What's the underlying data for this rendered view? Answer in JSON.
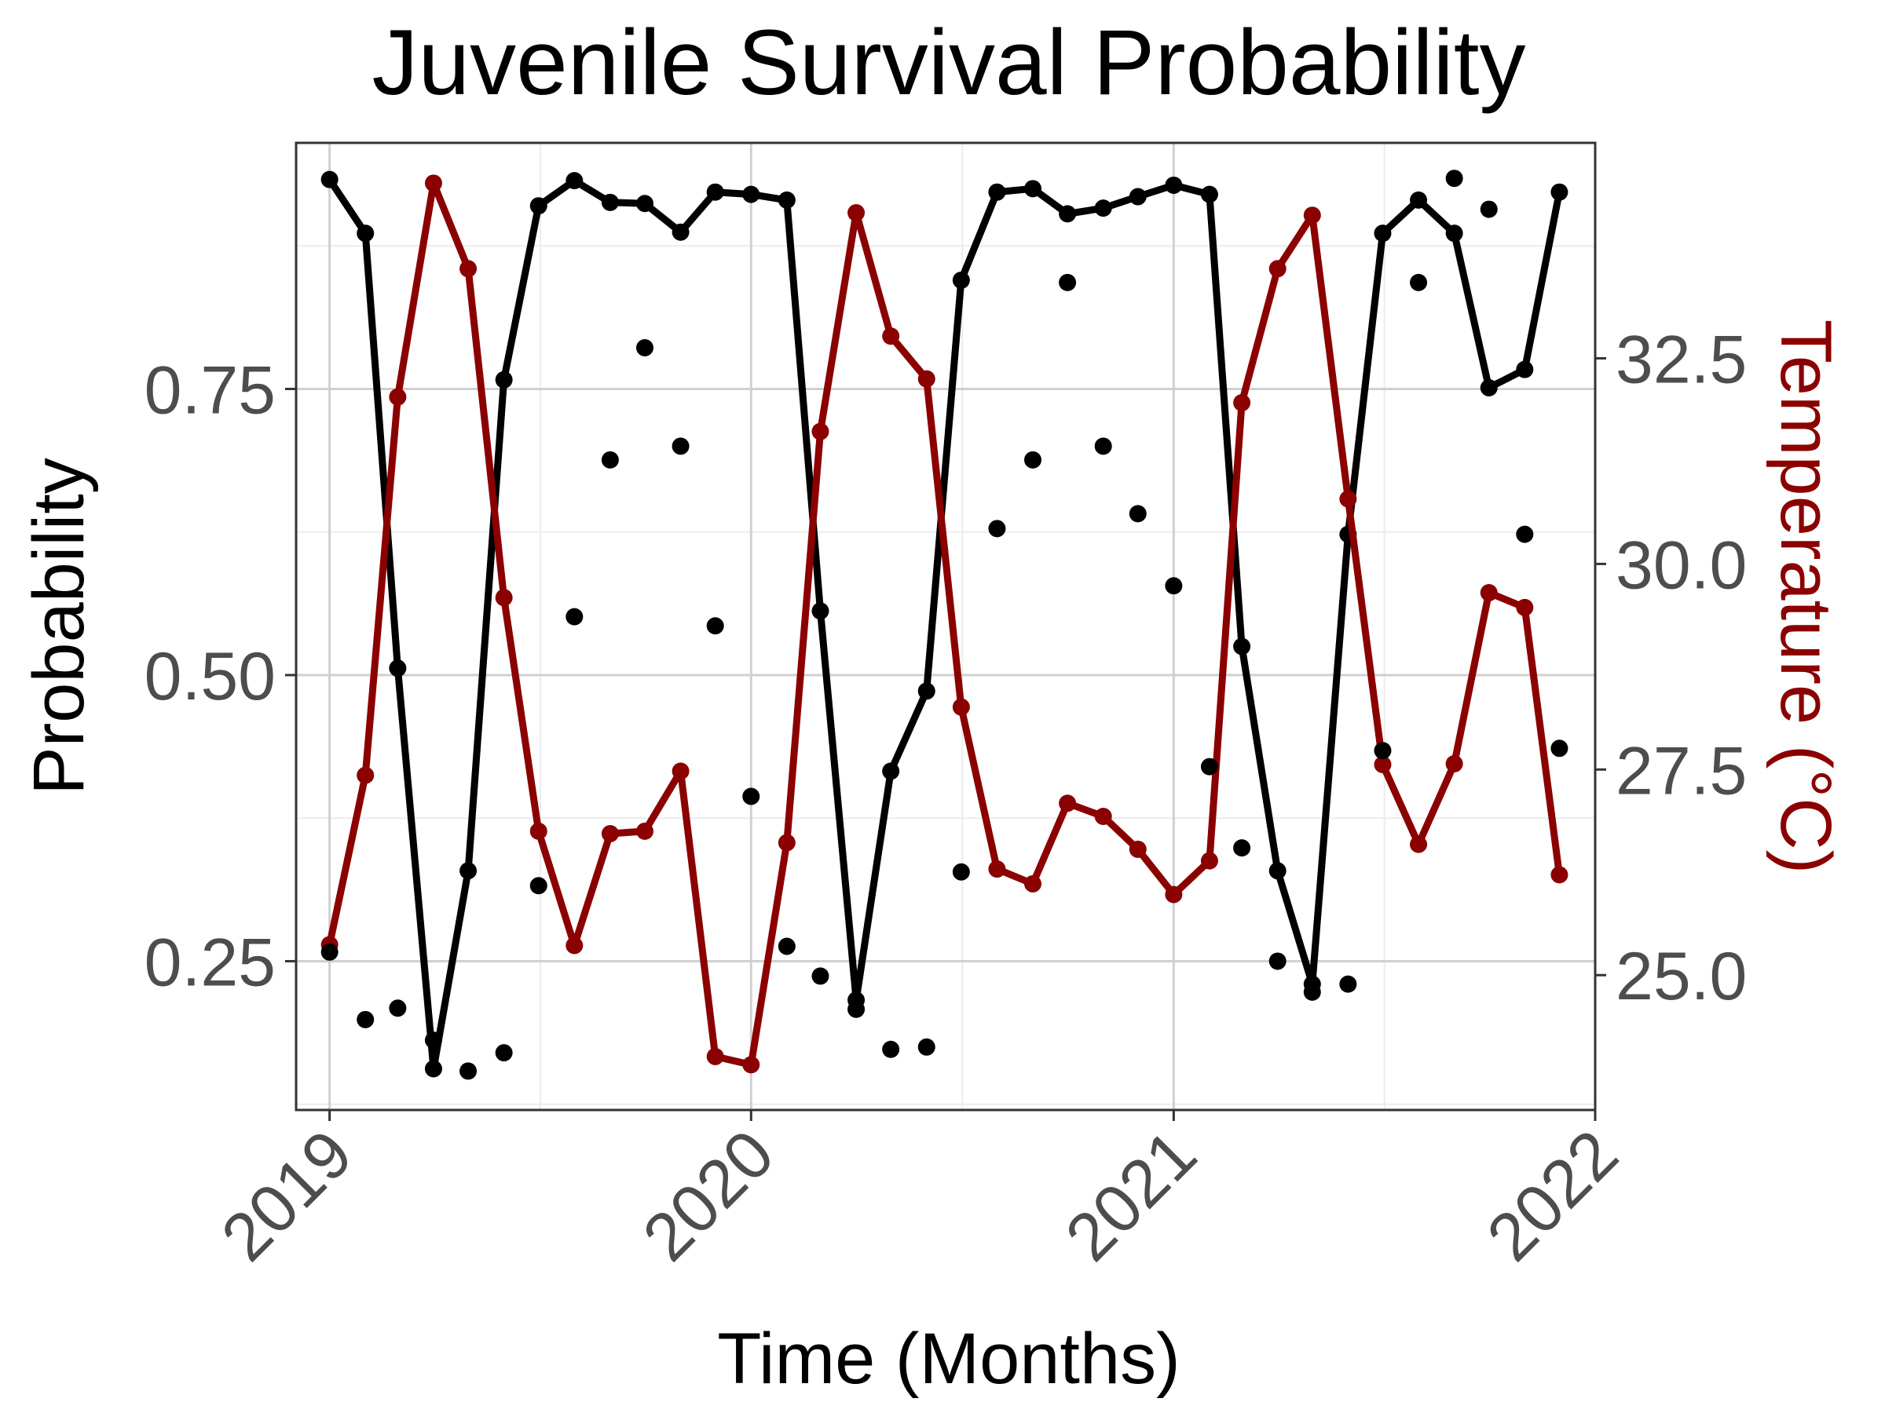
{
  "chart_data": {
    "type": "line",
    "title": "Juvenile Survival Probability",
    "xlabel": "Time (Months)",
    "ylabel": "Probability",
    "y2label": "Temperature (°C)",
    "xlim": [
      "2018-12-03",
      "2022-01-01"
    ],
    "ylim": [
      0.12,
      0.965
    ],
    "y2lim": [
      23.36,
      35.12
    ],
    "x_ticks": [
      {
        "date": "2019-01-01",
        "label": "2019"
      },
      {
        "date": "2020-01-01",
        "label": "2020"
      },
      {
        "date": "2021-01-01",
        "label": "2021"
      },
      {
        "date": "2022-01-01",
        "label": "2022"
      }
    ],
    "y_ticks": [
      0.25,
      0.5,
      0.75
    ],
    "y_tick_labels": [
      "0.25",
      "0.50",
      "0.75"
    ],
    "y2_ticks": [
      25.0,
      27.5,
      30.0,
      32.5
    ],
    "y2_tick_labels": [
      "25.0",
      "27.5",
      "30.0",
      "32.5"
    ],
    "grid": true,
    "colors": {
      "survival": "#000000",
      "temperature": "#8b0000",
      "observed": "#000000"
    },
    "series": [
      {
        "name": "",
        "axis": "left",
        "style": "line+points",
        "color": "#000000",
        "points": [
          [
            "2019-01-01",
            0.933
          ],
          [
            "2019-02-01",
            0.886
          ],
          [
            "2019-03-01",
            0.506
          ],
          [
            "2019-04-01",
            0.156
          ],
          [
            "2019-05-01",
            0.329
          ],
          [
            "2019-06-01",
            0.758
          ],
          [
            "2019-07-01",
            0.91
          ],
          [
            "2019-08-01",
            0.932
          ],
          [
            "2019-09-01",
            0.913
          ],
          [
            "2019-10-01",
            0.912
          ],
          [
            "2019-11-01",
            0.887
          ],
          [
            "2019-12-01",
            0.922
          ],
          [
            "2020-01-01",
            0.92
          ],
          [
            "2020-02-01",
            0.915
          ],
          [
            "2020-03-01",
            0.556
          ],
          [
            "2020-04-01",
            0.216
          ],
          [
            "2020-05-01",
            0.416
          ],
          [
            "2020-06-01",
            0.486
          ],
          [
            "2020-07-01",
            0.845
          ],
          [
            "2020-08-01",
            0.922
          ],
          [
            "2020-09-01",
            0.925
          ],
          [
            "2020-10-01",
            0.903
          ],
          [
            "2020-11-01",
            0.908
          ],
          [
            "2020-12-01",
            0.918
          ],
          [
            "2021-01-01",
            0.928
          ],
          [
            "2021-02-01",
            0.92
          ],
          [
            "2021-03-01",
            0.525
          ],
          [
            "2021-04-01",
            0.329
          ],
          [
            "2021-05-01",
            0.23
          ],
          [
            "2021-06-01",
            0.623
          ],
          [
            "2021-07-01",
            0.886
          ],
          [
            "2021-08-01",
            0.915
          ],
          [
            "2021-09-01",
            0.886
          ],
          [
            "2021-10-01",
            0.751
          ],
          [
            "2021-11-01",
            0.767
          ],
          [
            "2021-12-01",
            0.922
          ]
        ]
      },
      {
        "name": "",
        "axis": "right",
        "style": "line+points",
        "color": "#8b0000",
        "points": [
          [
            "2019-01-01",
            25.37
          ],
          [
            "2019-02-01",
            27.43
          ],
          [
            "2019-03-01",
            32.03
          ],
          [
            "2019-04-01",
            34.63
          ],
          [
            "2019-05-01",
            33.59
          ],
          [
            "2019-06-01",
            29.59
          ],
          [
            "2019-07-01",
            26.75
          ],
          [
            "2019-08-01",
            25.36
          ],
          [
            "2019-09-01",
            26.72
          ],
          [
            "2019-10-01",
            26.75
          ],
          [
            "2019-11-01",
            27.48
          ],
          [
            "2019-12-01",
            24.01
          ],
          [
            "2020-01-01",
            23.91
          ],
          [
            "2020-02-01",
            26.61
          ],
          [
            "2020-03-01",
            31.61
          ],
          [
            "2020-04-01",
            34.27
          ],
          [
            "2020-05-01",
            32.77
          ],
          [
            "2020-06-01",
            32.25
          ],
          [
            "2020-07-01",
            28.26
          ],
          [
            "2020-08-01",
            26.29
          ],
          [
            "2020-09-01",
            26.11
          ],
          [
            "2020-10-01",
            27.09
          ],
          [
            "2020-11-01",
            26.93
          ],
          [
            "2020-12-01",
            26.53
          ],
          [
            "2021-01-01",
            25.98
          ],
          [
            "2021-02-01",
            26.39
          ],
          [
            "2021-03-01",
            31.96
          ],
          [
            "2021-04-01",
            33.59
          ],
          [
            "2021-05-01",
            34.24
          ],
          [
            "2021-06-01",
            30.79
          ],
          [
            "2021-07-01",
            27.56
          ],
          [
            "2021-08-01",
            26.59
          ],
          [
            "2021-09-01",
            27.57
          ],
          [
            "2021-10-01",
            29.65
          ],
          [
            "2021-11-01",
            29.47
          ],
          [
            "2021-12-01",
            26.22
          ]
        ]
      },
      {
        "name": "",
        "axis": "left",
        "style": "points",
        "color": "#000000",
        "points": [
          [
            "2019-01-01",
            0.258
          ],
          [
            "2019-02-01",
            0.199
          ],
          [
            "2019-03-01",
            0.209
          ],
          [
            "2019-04-01",
            0.181
          ],
          [
            "2019-05-01",
            0.154
          ],
          [
            "2019-06-01",
            0.17
          ],
          [
            "2019-07-01",
            0.316
          ],
          [
            "2019-08-01",
            0.551
          ],
          [
            "2019-09-01",
            0.688
          ],
          [
            "2019-10-01",
            0.786
          ],
          [
            "2019-11-01",
            0.7
          ],
          [
            "2019-12-01",
            0.543
          ],
          [
            "2020-01-01",
            0.394
          ],
          [
            "2020-02-01",
            0.263
          ],
          [
            "2020-03-01",
            0.237
          ],
          [
            "2020-04-01",
            0.208
          ],
          [
            "2020-05-01",
            0.173
          ],
          [
            "2020-06-01",
            0.175
          ],
          [
            "2020-07-01",
            0.328
          ],
          [
            "2020-08-01",
            0.628
          ],
          [
            "2020-09-01",
            0.688
          ],
          [
            "2020-10-01",
            0.843
          ],
          [
            "2020-11-01",
            0.7
          ],
          [
            "2020-12-01",
            0.641
          ],
          [
            "2021-01-01",
            0.578
          ],
          [
            "2021-02-01",
            0.42
          ],
          [
            "2021-03-01",
            0.349
          ],
          [
            "2021-04-01",
            0.25
          ],
          [
            "2021-05-01",
            0.223
          ],
          [
            "2021-06-01",
            0.23
          ],
          [
            "2021-07-01",
            0.434
          ],
          [
            "2021-08-01",
            0.843
          ],
          [
            "2021-09-01",
            0.934
          ],
          [
            "2021-10-01",
            0.907
          ],
          [
            "2021-11-01",
            0.623
          ],
          [
            "2021-12-01",
            0.436
          ]
        ]
      }
    ]
  }
}
